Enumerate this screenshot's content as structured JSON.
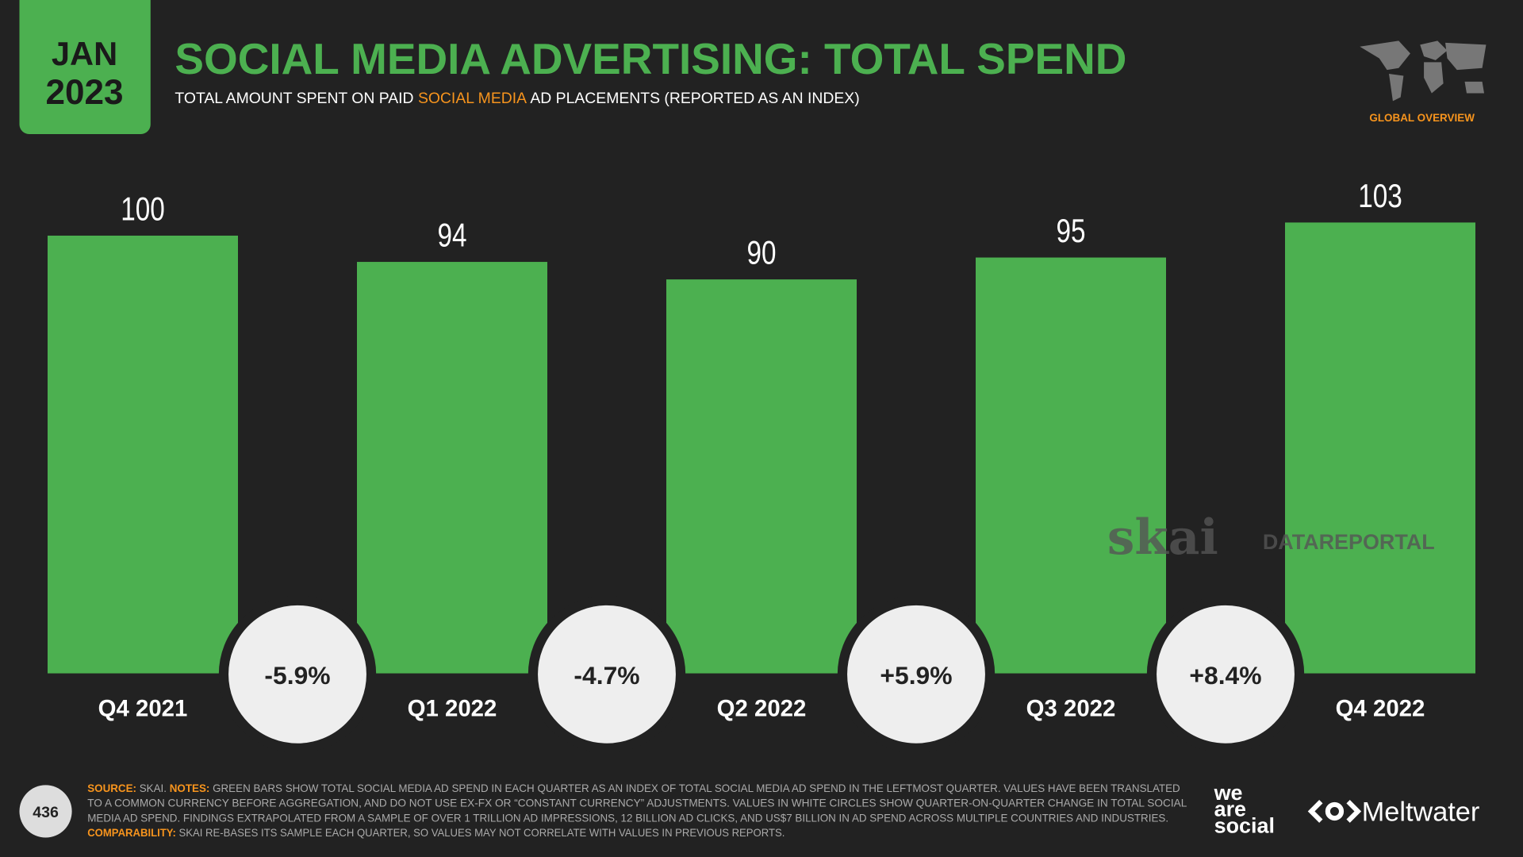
{
  "header": {
    "badge": [
      "JAN",
      "2023"
    ],
    "title": "SOCIAL MEDIA ADVERTISING: TOTAL SPEND",
    "subtitle": [
      {
        "text": "TOTAL AMOUNT SPENT ON PAID ",
        "color": "#ffffff"
      },
      {
        "text": "SOCIAL MEDIA",
        "color": "#f7941d"
      },
      {
        "text": " AD PLACEMENTS (REPORTED AS AN INDEX)",
        "color": "#ffffff"
      }
    ],
    "section": "GLOBAL OVERVIEW"
  },
  "chart_data": {
    "type": "bar",
    "categories": [
      "Q4 2021",
      "Q1 2022",
      "Q2 2022",
      "Q3 2022",
      "Q4 2022"
    ],
    "values": [
      100,
      94,
      90,
      95,
      103
    ],
    "color": "#4cb050",
    "changes": [
      {
        "value": -5.9,
        "label": "-5.9%"
      },
      {
        "value": -4.7,
        "label": "-4.7%"
      },
      {
        "value": 5.9,
        "label": "+5.9%"
      },
      {
        "value": 8.4,
        "label": "+8.4%"
      }
    ]
  },
  "watermark": {
    "source": "skai",
    "publisher": "DATAREPORTAL"
  },
  "footer": {
    "page": "436",
    "notes": [
      [
        {
          "text": "SOURCE:",
          "color": "#f7941d"
        },
        {
          "text": " SKAI. ",
          "color": "#aaaaaa"
        },
        {
          "text": "NOTES:",
          "color": "#f7941d"
        },
        {
          "text": " GREEN BARS SHOW TOTAL SOCIAL MEDIA AD SPEND IN EACH QUARTER AS AN INDEX OF TOTAL SOCIAL MEDIA AD SPEND IN THE LEFTMOST QUARTER. VALUES HAVE BEEN TRANSLATED",
          "color": "#aaaaaa"
        }
      ],
      [
        {
          "text": "TO A COMMON CURRENCY BEFORE AGGREGATION, AND DO NOT USE EX-FX OR “CONSTANT CURRENCY” ADJUSTMENTS. VALUES IN WHITE CIRCLES SHOW QUARTER-ON-QUARTER CHANGE IN TOTAL SOCIAL",
          "color": "#aaaaaa"
        }
      ],
      [
        {
          "text": "MEDIA AD SPEND. FINDINGS EXTRAPOLATED FROM A SAMPLE OF OVER 1 TRILLION AD IMPRESSIONS, 12 BILLION AD CLICKS, AND US$7 BILLION IN AD SPEND ACROSS MULTIPLE COUNTRIES AND INDUSTRIES.",
          "color": "#aaaaaa"
        }
      ],
      [
        {
          "text": "COMPARABILITY:",
          "color": "#f7941d"
        },
        {
          "text": " SKAI RE-BASES ITS SAMPLE EACH QUARTER, SO VALUES MAY NOT CORRELATE WITH VALUES IN PREVIOUS REPORTS.",
          "color": "#aaaaaa"
        }
      ]
    ],
    "logos": [
      "we",
      "are",
      "social",
      "Meltwater"
    ]
  }
}
